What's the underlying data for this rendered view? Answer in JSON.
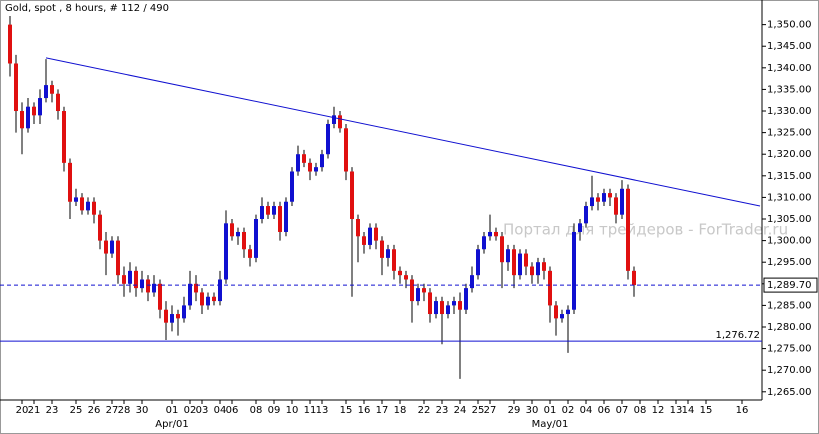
{
  "chart_data": {
    "type": "candlestick",
    "title": "Gold, spot , 8 hours, # 112 / 490",
    "watermark": "Портал для трейдеров - ForTrader.ru",
    "up_color": "#1010d0",
    "down_color": "#e01010",
    "wick_color": "#000000",
    "categories": [
      null,
      null,
      "20",
      null,
      "21",
      null,
      null,
      "23",
      null,
      null,
      null,
      "25",
      null,
      null,
      "26",
      null,
      null,
      "27",
      null,
      "28",
      null,
      null,
      "30",
      null,
      null,
      null,
      null,
      "01",
      null,
      null,
      "02",
      null,
      "03",
      null,
      null,
      "04",
      null,
      "06",
      null,
      null,
      null,
      "08",
      null,
      null,
      "09",
      null,
      null,
      "10",
      null,
      null,
      "11",
      null,
      "13",
      null,
      null,
      null,
      "15",
      null,
      null,
      "16",
      null,
      null,
      "17",
      null,
      null,
      "18",
      null,
      null,
      null,
      "22",
      null,
      null,
      "23",
      null,
      null,
      "24",
      null,
      null,
      "25",
      null,
      "27",
      null,
      null,
      null,
      "29",
      null,
      null,
      "30",
      null,
      null,
      "01",
      null,
      null,
      "02",
      null,
      null,
      "04",
      null,
      null,
      "06",
      null,
      null,
      "07",
      null,
      null,
      "08",
      null,
      null,
      "12",
      null,
      null,
      "13",
      null,
      "14",
      null,
      null,
      "15",
      null,
      null,
      null,
      null,
      null,
      "16",
      null,
      null,
      null
    ],
    "month_labels": [
      null,
      null,
      null,
      null,
      null,
      null,
      null,
      null,
      null,
      null,
      null,
      null,
      null,
      null,
      null,
      null,
      null,
      null,
      null,
      null,
      null,
      null,
      null,
      null,
      null,
      null,
      null,
      "Apr/01",
      null,
      null,
      null,
      null,
      null,
      null,
      null,
      null,
      null,
      null,
      null,
      null,
      null,
      null,
      null,
      null,
      null,
      null,
      null,
      null,
      null,
      null,
      null,
      null,
      null,
      null,
      null,
      null,
      null,
      null,
      null,
      null,
      null,
      null,
      null,
      null,
      null,
      null,
      null,
      null,
      null,
      null,
      null,
      null,
      null,
      null,
      null,
      null,
      null,
      null,
      null,
      null,
      null,
      null,
      null,
      null,
      null,
      null,
      null,
      null,
      null,
      null,
      "May/01",
      null,
      null,
      null,
      null,
      null,
      null,
      null,
      null,
      null,
      null,
      null,
      null,
      null,
      null,
      null,
      null,
      null,
      null,
      null,
      null,
      null,
      null,
      null,
      null,
      null,
      null,
      null,
      null,
      null,
      null,
      null,
      null,
      null,
      null,
      null
    ],
    "open": [
      1350,
      1341,
      1330,
      1326,
      1331,
      1329,
      1333,
      1336,
      1334,
      1330,
      1318,
      1309,
      1310,
      1307,
      1309,
      1306,
      1300,
      1297,
      1300,
      1292,
      1290,
      1293,
      1289,
      1291,
      1288,
      1290,
      1284,
      1281,
      1283,
      1282,
      1285,
      1290,
      1288,
      1285,
      1287,
      1286,
      1291,
      1304,
      1301,
      1302,
      1298,
      1296,
      1305,
      1308,
      1306,
      1308,
      1302,
      1309,
      1316,
      1320,
      1318,
      1316,
      1317,
      1320,
      1327,
      1329,
      1326,
      1316,
      1305,
      1301,
      1299,
      1303,
      1300,
      1296,
      1298,
      1293,
      1292,
      1291,
      1286,
      1289,
      1288,
      1283,
      1286,
      1283,
      1285,
      1286,
      1284,
      1289,
      1292,
      1298,
      1301,
      1302,
      1301,
      1295,
      1298,
      1292,
      1297,
      1294,
      1292,
      1295,
      1293,
      1285,
      1282,
      1283,
      1284,
      1302,
      1304,
      1308,
      1310,
      1309,
      1311,
      1310,
      1306,
      1312,
      1293,
      null,
      null,
      null,
      null,
      null,
      null,
      null,
      null,
      null,
      null,
      null,
      null,
      null,
      null,
      null,
      null,
      null,
      null,
      null,
      null,
      null
    ],
    "high": [
      1352,
      1343,
      1332,
      1333,
      1332,
      1335,
      1342,
      1337,
      1335,
      1331,
      1319,
      1312,
      1311,
      1310,
      1310,
      1307,
      1302,
      1301,
      1301,
      1294,
      1295,
      1294,
      1293,
      1292,
      1292,
      1291,
      1286,
      1285,
      1284,
      1287,
      1293,
      1292,
      1289,
      1288,
      1288,
      1293,
      1307,
      1305,
      1303,
      1303,
      1299,
      1306,
      1310,
      1309,
      1309,
      1309,
      1310,
      1317,
      1322,
      1321,
      1319,
      1318,
      1321,
      1328,
      1331,
      1330,
      1327,
      1317,
      1306,
      1302,
      1304,
      1304,
      1301,
      1299,
      1299,
      1294,
      1293,
      1292,
      1290,
      1290,
      1289,
      1287,
      1287,
      1286,
      1287,
      1288,
      1290,
      1294,
      1299,
      1302,
      1306,
      1303,
      1302,
      1299,
      1299,
      1298,
      1298,
      1295,
      1296,
      1296,
      1294,
      1286,
      1284,
      1285,
      1304,
      1305,
      1309,
      1315,
      1311,
      1312,
      1312,
      1311,
      1314,
      1313,
      1294,
      null,
      null,
      null,
      null,
      null,
      null,
      null,
      null,
      null,
      null,
      null,
      null,
      null,
      null,
      null,
      null,
      null,
      null,
      null,
      null,
      null
    ],
    "low": [
      1338,
      1325,
      1320,
      1325,
      1327,
      1327,
      1332,
      1332,
      1328,
      1316,
      1305,
      1308,
      1306,
      1306,
      1304,
      1298,
      1292,
      1296,
      1290,
      1287,
      1288,
      1287,
      1288,
      1286,
      1287,
      1282,
      1277,
      1279,
      1278,
      1281,
      1284,
      1286,
      1283,
      1284,
      1285,
      1285,
      1290,
      1300,
      1299,
      1296,
      1294,
      1295,
      1304,
      1305,
      1305,
      1300,
      1301,
      1308,
      1315,
      1317,
      1314,
      1315,
      1316,
      1319,
      1326,
      1325,
      1314,
      1287,
      1295,
      1297,
      1298,
      1298,
      1292,
      1294,
      1291,
      1290,
      1289,
      1281,
      1285,
      1286,
      1281,
      1282,
      1276,
      1282,
      1283,
      1268,
      1283,
      1288,
      1291,
      1297,
      1300,
      1300,
      1289,
      1293,
      1289,
      1291,
      1292,
      1290,
      1290,
      1291,
      1281,
      1278,
      1281,
      1274,
      1283,
      1300,
      1303,
      1307,
      1307,
      1308,
      1308,
      1304,
      1305,
      1291,
      1287,
      null,
      null,
      null,
      null,
      null,
      null,
      null,
      null,
      null,
      null,
      null,
      null,
      null,
      null,
      null,
      null,
      null,
      null,
      null,
      null,
      null
    ],
    "close": [
      1341,
      1330,
      1326,
      1331,
      1329,
      1333,
      1336,
      1334,
      1330,
      1318,
      1309,
      1310,
      1307,
      1309,
      1306,
      1300,
      1297,
      1300,
      1292,
      1290,
      1293,
      1289,
      1291,
      1288,
      1290,
      1284,
      1281,
      1283,
      1282,
      1285,
      1290,
      1288,
      1285,
      1287,
      1286,
      1291,
      1304,
      1301,
      1302,
      1298,
      1296,
      1305,
      1308,
      1306,
      1308,
      1302,
      1309,
      1316,
      1320,
      1318,
      1316,
      1317,
      1320,
      1327,
      1329,
      1326,
      1316,
      1305,
      1301,
      1299,
      1303,
      1300,
      1296,
      1298,
      1293,
      1292,
      1291,
      1286,
      1289,
      1288,
      1283,
      1286,
      1283,
      1285,
      1286,
      1284,
      1289,
      1292,
      1298,
      1301,
      1302,
      1301,
      1295,
      1298,
      1292,
      1297,
      1294,
      1292,
      1295,
      1293,
      1285,
      1282,
      1283,
      1284,
      1302,
      1304,
      1308,
      1310,
      1309,
      1311,
      1310,
      1306,
      1312,
      1293,
      1289.7,
      null,
      null,
      null,
      null,
      null,
      null,
      null,
      null,
      null,
      null,
      null,
      null,
      null,
      null,
      null,
      null,
      null,
      null,
      null,
      null,
      null
    ],
    "ylim": [
      1263.1,
      1355.7
    ],
    "yticks": [
      {
        "value": 1265,
        "label": "1,265.00"
      },
      {
        "value": 1270,
        "label": "1,270.00"
      },
      {
        "value": 1275,
        "label": "1,275.00"
      },
      {
        "value": 1280,
        "label": "1,280.00"
      },
      {
        "value": 1285,
        "label": "1,285.00"
      },
      {
        "value": 1290,
        "label": "1,290.00"
      },
      {
        "value": 1295,
        "label": "1,295.00"
      },
      {
        "value": 1300,
        "label": "1,300.00"
      },
      {
        "value": 1305,
        "label": "1,305.00"
      },
      {
        "value": 1310,
        "label": "1,310.00"
      },
      {
        "value": 1315,
        "label": "1,315.00"
      },
      {
        "value": 1320,
        "label": "1,320.00"
      },
      {
        "value": 1325,
        "label": "1,325.00"
      },
      {
        "value": 1330,
        "label": "1,330.00"
      },
      {
        "value": 1335,
        "label": "1,335.00"
      },
      {
        "value": 1340,
        "label": "1,340.00"
      },
      {
        "value": 1345,
        "label": "1,345.00"
      },
      {
        "value": 1350,
        "label": "1,350.00"
      }
    ],
    "trendline": {
      "x": [
        6,
        125
      ],
      "values": [
        1342.3,
        1308
      ],
      "color": "#1010d0"
    },
    "hlines": [
      {
        "value": 1289.7,
        "label": "1,289.70",
        "style": "dashed",
        "color": "#1010d0"
      },
      {
        "value": 1276.72,
        "label": "1,276.72",
        "style": "solid",
        "color": "#1010d0"
      }
    ]
  }
}
